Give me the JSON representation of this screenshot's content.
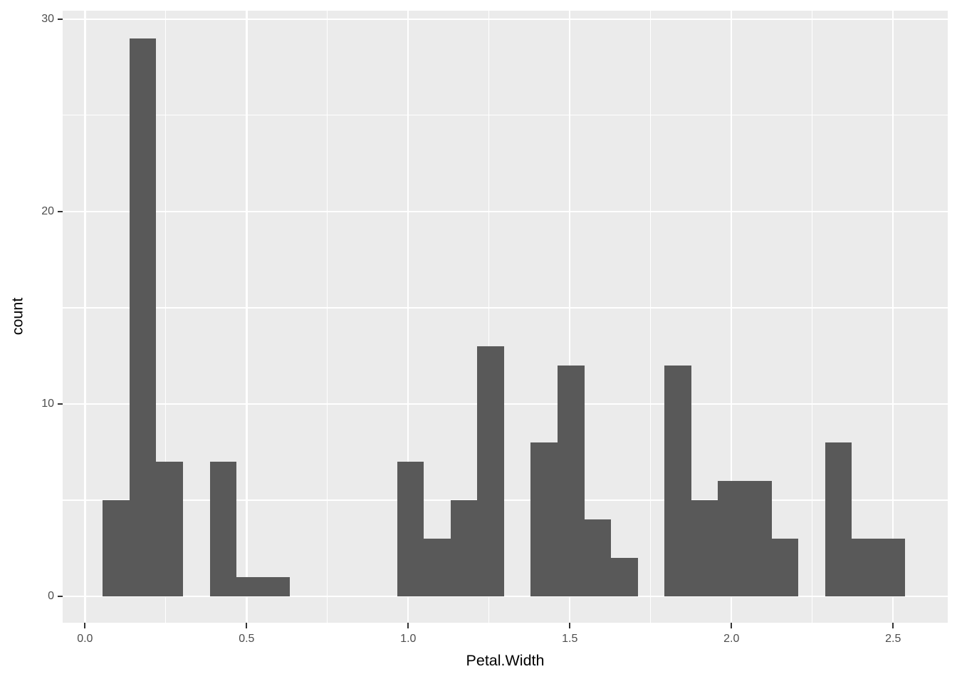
{
  "chart_data": {
    "type": "histogram",
    "title": "",
    "xlabel": "Petal.Width",
    "ylabel": "count",
    "legend": "none",
    "grid": "on",
    "colors": {
      "bar_fill": "#595959",
      "panel_background": "#EBEBEB",
      "gridline": "#FFFFFF",
      "tick_mark": "#333333",
      "axis_text": "#4D4D4D",
      "axis_title": "#000000",
      "figure_background": "#FFFFFF"
    },
    "binwidth": 0.082759,
    "x_axis": {
      "range": [
        -0.069,
        2.669
      ],
      "major_ticks": [
        0,
        0.5,
        1.0,
        1.5,
        2.0,
        2.5
      ],
      "tick_labels": [
        "0.0",
        "0.5",
        "1.0",
        "1.5",
        "2.0",
        "2.5"
      ],
      "minor_ticks": [
        0.25,
        0.75,
        1.25,
        1.75,
        2.25
      ]
    },
    "y_axis": {
      "range": [
        -1.37,
        30.44
      ],
      "major_ticks": [
        0,
        10,
        20,
        30
      ],
      "tick_labels": [
        "0",
        "10",
        "20",
        "30"
      ],
      "minor_ticks": [
        5,
        15,
        25
      ]
    },
    "bars": [
      {
        "left": 0.055,
        "count": 5
      },
      {
        "left": 0.1378,
        "count": 29
      },
      {
        "left": 0.2205,
        "count": 7
      },
      {
        "left": 0.3861,
        "count": 7
      },
      {
        "left": 0.4688,
        "count": 1
      },
      {
        "left": 0.5516,
        "count": 1
      },
      {
        "left": 0.9654,
        "count": 7
      },
      {
        "left": 1.0482,
        "count": 3
      },
      {
        "left": 1.1309,
        "count": 5
      },
      {
        "left": 1.2137,
        "count": 13
      },
      {
        "left": 1.3792,
        "count": 8
      },
      {
        "left": 1.462,
        "count": 12
      },
      {
        "left": 1.5448,
        "count": 4
      },
      {
        "left": 1.6275,
        "count": 2
      },
      {
        "left": 1.793,
        "count": 12
      },
      {
        "left": 1.8758,
        "count": 5
      },
      {
        "left": 1.9586,
        "count": 6
      },
      {
        "left": 2.0413,
        "count": 6
      },
      {
        "left": 2.1241,
        "count": 3
      },
      {
        "left": 2.2896,
        "count": 8
      },
      {
        "left": 2.3724,
        "count": 3
      },
      {
        "left": 2.4551,
        "count": 3
      }
    ]
  }
}
